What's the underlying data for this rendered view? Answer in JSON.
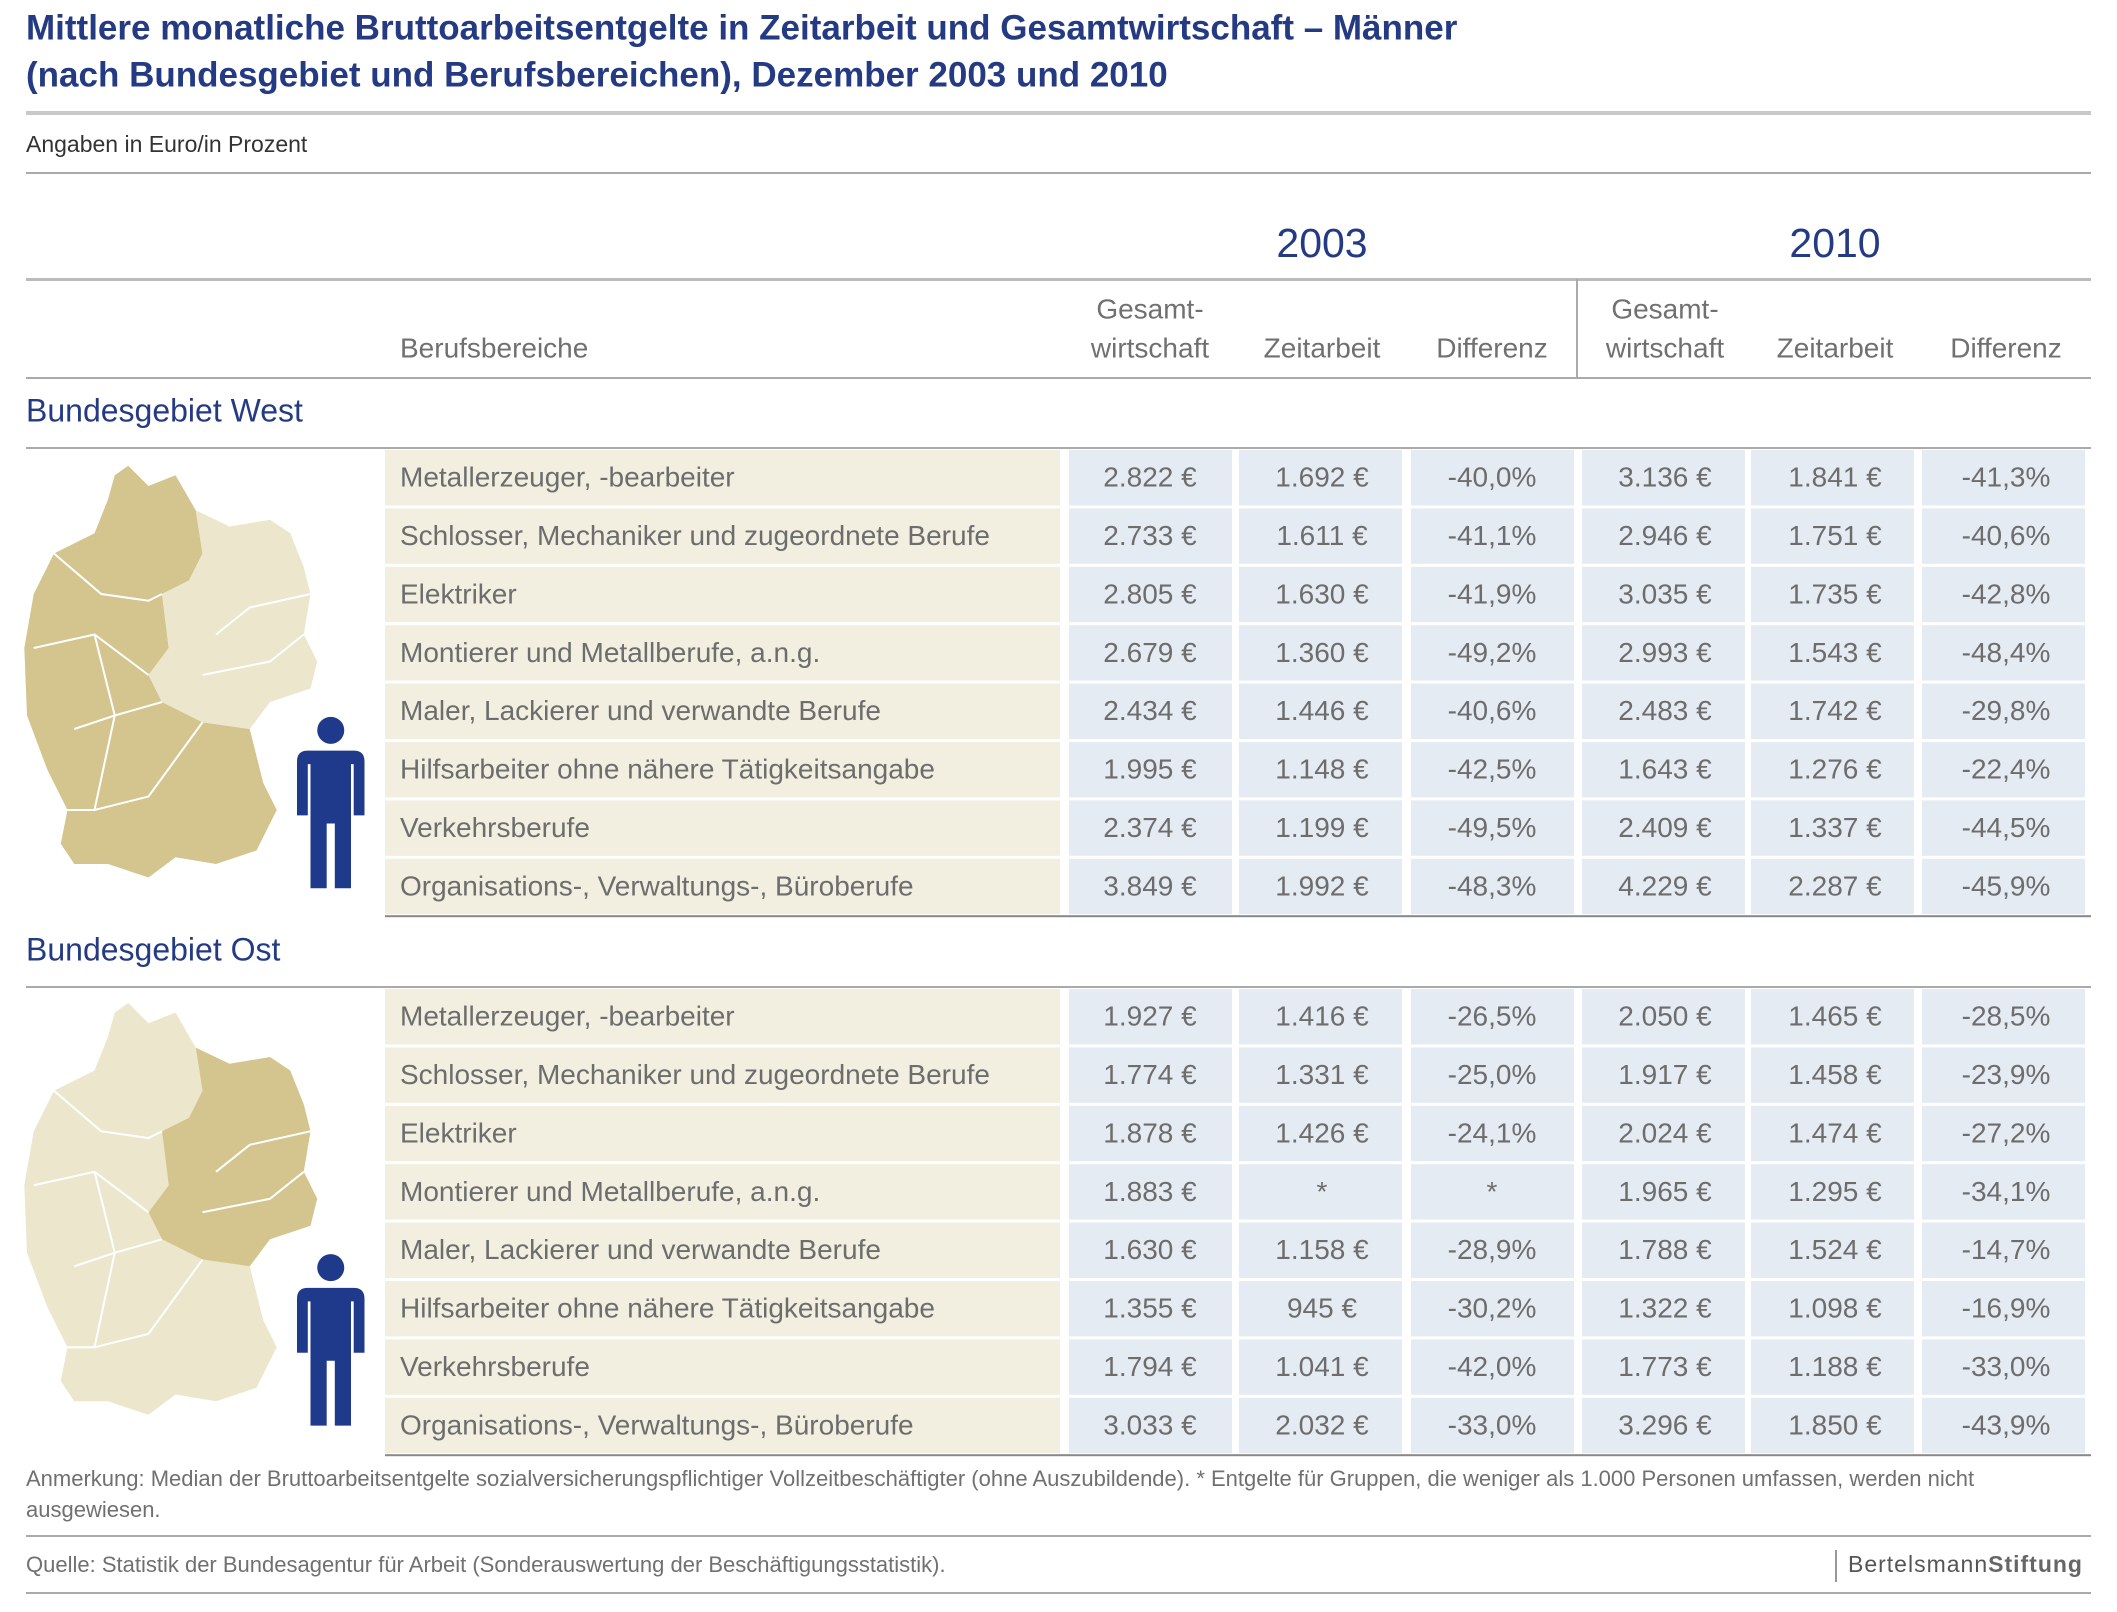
{
  "header": {
    "title": [
      "Mittlere monatliche Bruttoarbeitsentgelte in Zeitarbeit und Gesamtwirtschaft – Männer",
      "(nach Bundesgebiet und Berufsbereichen), Dezember 2003 und 2010"
    ],
    "subtitle": "Angaben in Euro/in Prozent"
  },
  "table": {
    "years": [
      "2003",
      "2010"
    ],
    "row_header": "Berufsbereiche",
    "columns": [
      [
        "Gesamt-",
        "wirtschaft"
      ],
      [
        "Zeitarbeit"
      ],
      [
        "Differenz"
      ]
    ],
    "sections": [
      {
        "name": "Bundesgebiet West",
        "rows": [
          {
            "label": "Metallerzeuger, -bearbeiter",
            "values": [
              "2.822 €",
              "1.692 €",
              "-40,0%",
              "3.136 €",
              "1.841 €",
              "-41,3%"
            ]
          },
          {
            "label": "Schlosser, Mechaniker und zugeordnete Berufe",
            "values": [
              "2.733 €",
              "1.611 €",
              "-41,1%",
              "2.946 €",
              "1.751 €",
              "-40,6%"
            ]
          },
          {
            "label": "Elektriker",
            "values": [
              "2.805 €",
              "1.630 €",
              "-41,9%",
              "3.035 €",
              "1.735 €",
              "-42,8%"
            ]
          },
          {
            "label": "Montierer und Metallberufe, a.n.g.",
            "values": [
              "2.679 €",
              "1.360 €",
              "-49,2%",
              "2.993 €",
              "1.543 €",
              "-48,4%"
            ]
          },
          {
            "label": "Maler, Lackierer und verwandte Berufe",
            "values": [
              "2.434 €",
              "1.446 €",
              "-40,6%",
              "2.483 €",
              "1.742 €",
              "-29,8%"
            ]
          },
          {
            "label": "Hilfsarbeiter ohne nähere Tätigkeitsangabe",
            "values": [
              "1.995 €",
              "1.148 €",
              "-42,5%",
              "1.643 €",
              "1.276 €",
              "-22,4%"
            ]
          },
          {
            "label": "Verkehrsberufe",
            "values": [
              "2.374 €",
              "1.199 €",
              "-49,5%",
              "2.409 €",
              "1.337 €",
              "-44,5%"
            ]
          },
          {
            "label": "Organisations-, Verwaltungs-, Büroberufe",
            "values": [
              "3.849 €",
              "1.992 €",
              "-48,3%",
              "4.229 €",
              "2.287 €",
              "-45,9%"
            ]
          }
        ]
      },
      {
        "name": "Bundesgebiet Ost",
        "rows": [
          {
            "label": "Metallerzeuger, -bearbeiter",
            "values": [
              "1.927 €",
              "1.416 €",
              "-26,5%",
              "2.050 €",
              "1.465 €",
              "-28,5%"
            ]
          },
          {
            "label": "Schlosser, Mechaniker und zugeordnete Berufe",
            "values": [
              "1.774 €",
              "1.331 €",
              "-25,0%",
              "1.917 €",
              "1.458 €",
              "-23,9%"
            ]
          },
          {
            "label": "Elektriker",
            "values": [
              "1.878 €",
              "1.426 €",
              "-24,1%",
              "2.024 €",
              "1.474 €",
              "-27,2%"
            ]
          },
          {
            "label": "Montierer und Metallberufe, a.n.g.",
            "values": [
              "1.883 €",
              "*",
              "*",
              "1.965 €",
              "1.295 €",
              "-34,1%"
            ]
          },
          {
            "label": "Maler, Lackierer und verwandte Berufe",
            "values": [
              "1.630 €",
              "1.158 €",
              "-28,9%",
              "1.788 €",
              "1.524 €",
              "-14,7%"
            ]
          },
          {
            "label": "Hilfsarbeiter ohne nähere Tätigkeitsangabe",
            "values": [
              "1.355 €",
              "945 €",
              "-30,2%",
              "1.322 €",
              "1.098 €",
              "-16,9%"
            ]
          },
          {
            "label": "Verkehrsberufe",
            "values": [
              "1.794 €",
              "1.041 €",
              "-42,0%",
              "1.773 €",
              "1.188 €",
              "-33,0%"
            ]
          },
          {
            "label": "Organisations-, Verwaltungs-, Büroberufe",
            "values": [
              "3.033 €",
              "2.032 €",
              "-33,0%",
              "3.296 €",
              "1.850 €",
              "-43,9%"
            ]
          }
        ]
      }
    ]
  },
  "footer": {
    "note": [
      "Anmerkung: Median der Bruttoarbeitsentgelte sozialversicherungspflichtiger Vollzeitbeschäftigter (ohne Auszubildende). * Entgelte für Gruppen, die weniger als 1.000 Personen umfassen, werden nicht",
      "ausgewiesen."
    ],
    "source": "Quelle: Statistik der Bundesagentur für Arbeit (Sonderauswertung der Beschäftigungsstatistik).",
    "logo": [
      "Bertelsmann",
      "Stiftung"
    ]
  }
}
